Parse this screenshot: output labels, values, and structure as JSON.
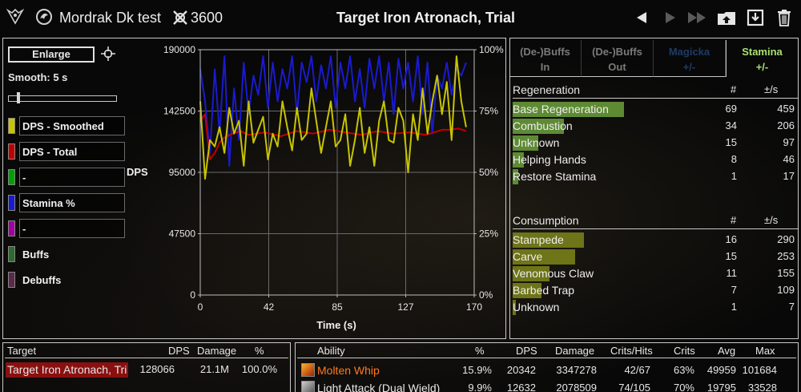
{
  "header": {
    "player_name": "Mordrak Dk test",
    "total_dps": "3600",
    "fight_title": "Target Iron Atronach, Trial"
  },
  "icons": {
    "logo": "ornate-emblem-icon",
    "class": "dragonknight-icon",
    "dps": "crossed-swords-icon",
    "prev": "triangle-left-icon",
    "next": "triangle-right-icon",
    "last": "double-triangle-right-icon",
    "upload": "upload-icon",
    "save": "save-icon",
    "delete": "trash-icon"
  },
  "left": {
    "enlarge_label": "Enlarge",
    "smooth_label": "Smooth: 5 s",
    "smooth_fraction": 0.08,
    "legend": [
      {
        "label": "DPS - Smoothed",
        "color": "#c8c400"
      },
      {
        "label": "DPS - Total",
        "color": "#c00000"
      },
      {
        "label": "-",
        "color": "#00a000"
      },
      {
        "label": "Stamina %",
        "color": "#1a1ad0"
      },
      {
        "label": "-",
        "color": "#a000a0"
      },
      {
        "label": "Buffs",
        "color": "#2d6a2d"
      },
      {
        "label": "Debuffs",
        "color": "#5a2a4a"
      }
    ]
  },
  "chart_data": {
    "type": "line",
    "ylabel": "DPS",
    "xlabel": "Time (s)",
    "xlim": [
      0,
      170
    ],
    "ylim": [
      0,
      190000
    ],
    "x_ticks": [
      "0",
      "42",
      "85",
      "127",
      "170"
    ],
    "y_ticks": [
      "0",
      "47500",
      "95000",
      "142500",
      "190000"
    ],
    "y2_ticks": [
      "0%",
      "25%",
      "50%",
      "75%",
      "100%"
    ],
    "grid": true,
    "series": [
      {
        "name": "DPS - Smoothed",
        "color": "#c8c400",
        "x": [
          0,
          3,
          6,
          9,
          12,
          15,
          18,
          21,
          24,
          27,
          30,
          33,
          36,
          39,
          42,
          45,
          48,
          51,
          54,
          57,
          60,
          63,
          66,
          69,
          72,
          75,
          78,
          81,
          84,
          87,
          90,
          93,
          96,
          99,
          102,
          105,
          108,
          111,
          114,
          117,
          120,
          123,
          126,
          129,
          132,
          135,
          138,
          141,
          144,
          147,
          150,
          153,
          156,
          159,
          162,
          165
        ],
        "y": [
          150000,
          90000,
          120000,
          115000,
          130000,
          110000,
          145000,
          125000,
          135000,
          100000,
          150000,
          118000,
          128000,
          138000,
          105000,
          125000,
          115000,
          150000,
          130000,
          112000,
          145000,
          120000,
          125000,
          160000,
          135000,
          110000,
          130000,
          150000,
          115000,
          120000,
          140000,
          100000,
          120000,
          145000,
          110000,
          130000,
          100000,
          135000,
          150000,
          120000,
          118000,
          145000,
          135000,
          95000,
          140000,
          120000,
          160000,
          125000,
          150000,
          170000,
          140000,
          165000,
          120000,
          185000,
          150000,
          130000
        ]
      },
      {
        "name": "DPS - Total",
        "color": "#c00000",
        "x": [
          0,
          3,
          6,
          9,
          12,
          15,
          20,
          25,
          30,
          40,
          50,
          60,
          70,
          80,
          90,
          100,
          110,
          120,
          130,
          140,
          150,
          155,
          160,
          165
        ],
        "y": [
          135000,
          140000,
          105000,
          110000,
          118000,
          122000,
          125000,
          127000,
          124000,
          126000,
          123000,
          127000,
          125000,
          128000,
          126000,
          124000,
          127000,
          125000,
          126000,
          124000,
          128000,
          128000,
          129000,
          127000
        ]
      },
      {
        "name": "Stamina %",
        "color": "#1a1ad0",
        "x": [
          0,
          3,
          6,
          9,
          12,
          15,
          18,
          21,
          24,
          27,
          30,
          33,
          36,
          39,
          42,
          45,
          48,
          51,
          54,
          57,
          60,
          63,
          66,
          69,
          72,
          75,
          78,
          81,
          84,
          87,
          90,
          93,
          96,
          99,
          102,
          105,
          108,
          111,
          114,
          117,
          120,
          123,
          126,
          129,
          132,
          135,
          138,
          141,
          144,
          147,
          150,
          153,
          156,
          159,
          162,
          165
        ],
        "y": [
          175000,
          150000,
          110000,
          175000,
          125000,
          185000,
          100000,
          160000,
          120000,
          180000,
          140000,
          170000,
          155000,
          185000,
          145000,
          180000,
          150000,
          175000,
          160000,
          185000,
          140000,
          180000,
          165000,
          185000,
          150000,
          178000,
          160000,
          185000,
          145000,
          180000,
          160000,
          185000,
          150000,
          175000,
          145000,
          183000,
          160000,
          185000,
          150000,
          180000,
          140000,
          183000,
          160000,
          180000,
          150000,
          185000,
          140000,
          180000,
          125000,
          170000,
          160000,
          180000,
          155000,
          175000,
          170000,
          180000
        ]
      }
    ]
  },
  "tabs": [
    {
      "line1": "(De-)Buffs",
      "line2": "In",
      "color": "#7a7a7a",
      "active": false
    },
    {
      "line1": "(De-)Buffs",
      "line2": "Out",
      "color": "#7a7a7a",
      "active": false
    },
    {
      "line1": "Magicka",
      "line2": "+/-",
      "color": "#1e3c64",
      "active": false
    },
    {
      "line1": "Stamina",
      "line2": "+/-",
      "color": "#a8e070",
      "active": true
    }
  ],
  "regeneration": {
    "heading": "Regeneration",
    "col_count": "#",
    "col_per_s": "±/s",
    "rows": [
      {
        "name": "Base Regeneration",
        "count": "69",
        "per_s": "459",
        "fill": 0.39
      },
      {
        "name": "Combustion",
        "count": "34",
        "per_s": "206",
        "fill": 0.18
      },
      {
        "name": "Unknown",
        "count": "15",
        "per_s": "97",
        "fill": 0.09
      },
      {
        "name": "Helping Hands",
        "count": "8",
        "per_s": "46",
        "fill": 0.04
      },
      {
        "name": "Restore Stamina",
        "count": "1",
        "per_s": "17",
        "fill": 0.02
      }
    ]
  },
  "consumption": {
    "heading": "Consumption",
    "col_count": "#",
    "col_per_s": "±/s",
    "rows": [
      {
        "name": "Stampede",
        "count": "16",
        "per_s": "290",
        "fill": 0.25
      },
      {
        "name": "Carve",
        "count": "15",
        "per_s": "253",
        "fill": 0.22
      },
      {
        "name": "Venomous Claw",
        "count": "11",
        "per_s": "155",
        "fill": 0.13
      },
      {
        "name": "Barbed Trap",
        "count": "7",
        "per_s": "109",
        "fill": 0.1
      },
      {
        "name": "Unknown",
        "count": "1",
        "per_s": "7",
        "fill": 0.01
      }
    ]
  },
  "targets": {
    "headers": {
      "target": "Target",
      "dps": "DPS",
      "damage": "Damage",
      "pct": "%"
    },
    "rows": [
      {
        "name": "Target Iron Atronach, Tri",
        "dps": "128066",
        "damage": "21.1M",
        "pct": "100.0%"
      }
    ]
  },
  "abilities": {
    "headers": {
      "ability": "Ability",
      "pct": "%",
      "dps": "DPS",
      "damage": "Damage",
      "crits_hits": "Crits/Hits",
      "crits": "Crits",
      "avg": "Avg",
      "max": "Max"
    },
    "rows": [
      {
        "icon": "molten-whip-icon",
        "name": "Molten Whip",
        "name_color": "#ff7a20",
        "pct": "15.9%",
        "dps": "20342",
        "damage": "3347278",
        "crits_hits": "42/67",
        "crits": "63%",
        "avg": "49959",
        "max": "101684"
      },
      {
        "icon": "dual-wield-icon",
        "name": "Light Attack (Dual Wield)",
        "name_color": "#e8e8e8",
        "pct": "9.9%",
        "dps": "12632",
        "damage": "2078509",
        "crits_hits": "74/105",
        "crits": "70%",
        "avg": "19795",
        "max": "33528"
      }
    ]
  }
}
